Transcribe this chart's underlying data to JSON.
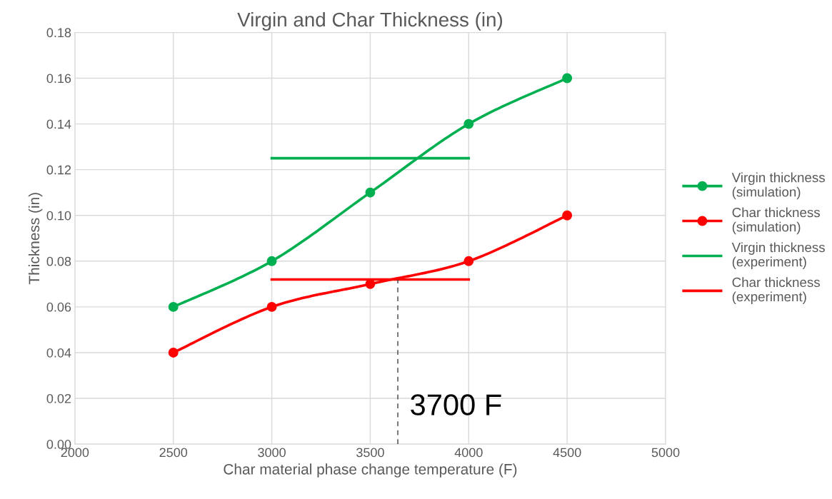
{
  "chart_data": {
    "type": "line",
    "title": "Virgin and Char Thickness (in)",
    "xlabel": "Char material phase change temperature (F)",
    "ylabel": "Thickness (in)",
    "xlim": [
      2000,
      5000
    ],
    "xticks": [
      2000,
      2500,
      3000,
      3500,
      4000,
      4500,
      5000
    ],
    "ylim": [
      0,
      0.18
    ],
    "yticks": [
      {
        "value": 0,
        "label": "0.00"
      },
      {
        "value": 0.02,
        "label": "0.02"
      },
      {
        "value": 0.04,
        "label": "0.04"
      },
      {
        "value": 0.06,
        "label": "0.06"
      },
      {
        "value": 0.08,
        "label": "0.08"
      },
      {
        "value": 0.1,
        "label": "0.10"
      },
      {
        "value": 0.12,
        "label": "0.12"
      },
      {
        "value": 0.14,
        "label": "0.14"
      },
      {
        "value": 0.16,
        "label": "0.16"
      },
      {
        "value": 0.18,
        "label": "0.18"
      }
    ],
    "grid": true,
    "legend": "right",
    "series": [
      {
        "name": "Virgin thickness (simulation)",
        "color": "#00b050",
        "x": [
          2500,
          3000,
          3500,
          4000,
          4500
        ],
        "values": [
          0.06,
          0.08,
          0.11,
          0.14,
          0.16
        ],
        "marker": "circle"
      },
      {
        "name": "Char thickness (simulation)",
        "color": "#ff0000",
        "x": [
          2500,
          3000,
          3500,
          4000,
          4500
        ],
        "values": [
          0.04,
          0.06,
          0.07,
          0.08,
          0.1
        ],
        "marker": "circle"
      },
      {
        "name": "Virgin thickness (experiment)",
        "color": "#00b050",
        "x": [
          3000,
          4000
        ],
        "values": [
          0.125,
          0.125
        ]
      },
      {
        "name": "Char thickness (experiment)",
        "color": "#ff0000",
        "x": [
          3000,
          4000
        ],
        "values": [
          0.072,
          0.072
        ]
      },
      {
        "color": "#404040",
        "x": [
          3640,
          3640
        ],
        "values": [
          0,
          0.072
        ],
        "line_style": "dashed"
      }
    ],
    "annotations": [
      {
        "text": "3700 F",
        "x": 3640,
        "y": 0.01
      }
    ]
  }
}
